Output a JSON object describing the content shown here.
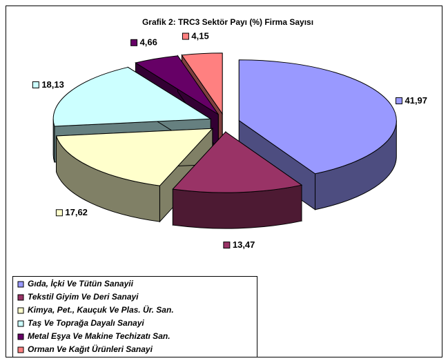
{
  "chart_data": {
    "type": "pie3d",
    "title": "Grafik 2: TRC3 Sektör Payı (%) Firma Sayısı",
    "categories": [
      "Gıda, İçki Ve Tütün Sanayii",
      "Tekstil Giyim Ve Deri Sanayi",
      "Kimya, Pet., Kauçuk Ve Plas. Ür. San.",
      "Taş Ve Toprağa Dayalı Sanayi",
      "Metal Eşya Ve Makine Techizatı San.",
      "Orman Ve Kağıt Ürünleri Sanayi"
    ],
    "values": [
      41.97,
      13.47,
      17.62,
      18.13,
      4.66,
      4.15
    ],
    "value_labels": [
      "41,97",
      "13,47",
      "17,62",
      "18,13",
      "4,66",
      "4,15"
    ],
    "colors": [
      "#9999ff",
      "#993366",
      "#ffffcc",
      "#ccffff",
      "#660066",
      "#ff8080"
    ],
    "legend": "bottom-left"
  }
}
